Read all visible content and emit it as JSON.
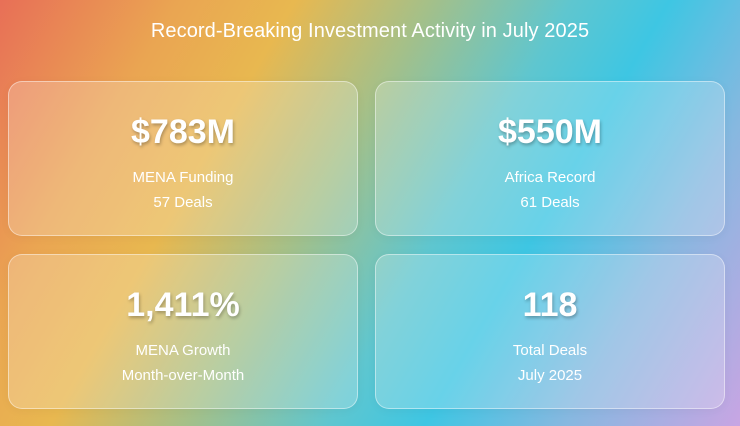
{
  "title": "Record-Breaking Investment Activity in July 2025",
  "cards": [
    {
      "value": "$783M",
      "label": "MENA Funding",
      "sub": "57 Deals"
    },
    {
      "value": "$550M",
      "label": "Africa Record",
      "sub": "61 Deals"
    },
    {
      "value": "1,411%",
      "label": "MENA Growth",
      "sub": "Month-over-Month"
    },
    {
      "value": "118",
      "label": "Total Deals",
      "sub": "July 2025"
    }
  ]
}
